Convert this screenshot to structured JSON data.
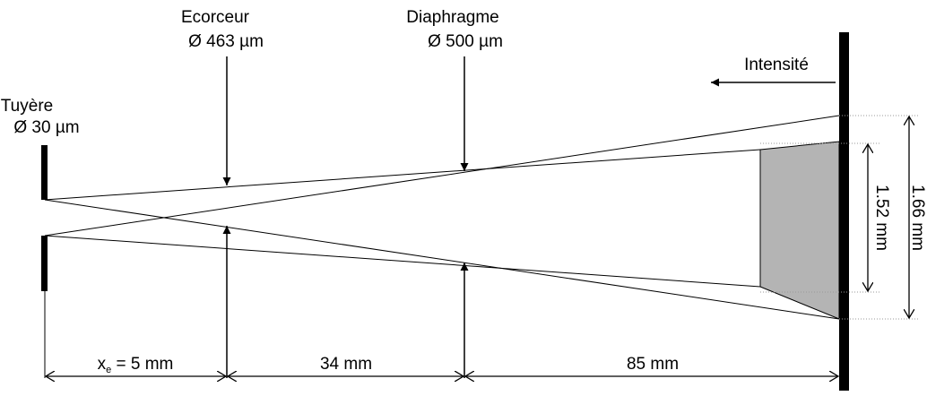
{
  "labels": {
    "nozzle_name": "Tuyère",
    "nozzle_diam": "Ø 30 µm",
    "skimmer_name": "Ecorceur",
    "skimmer_diam": "Ø 463 µm",
    "diaphragm_name": "Diaphragme",
    "diaphragm_diam": "Ø 500 µm",
    "intensity": "Intensité"
  },
  "dimensions": {
    "xe_symbol": "x",
    "xe_subscript": "e",
    "xe_value": " = 5 mm",
    "d2": "34 mm",
    "d3": "85 mm",
    "inner_height": "1.52 mm",
    "outer_height": "1.66 mm"
  },
  "colors": {
    "line": "#000000",
    "shaded": "#b4b4b4",
    "guide": "#9a9a9a"
  }
}
